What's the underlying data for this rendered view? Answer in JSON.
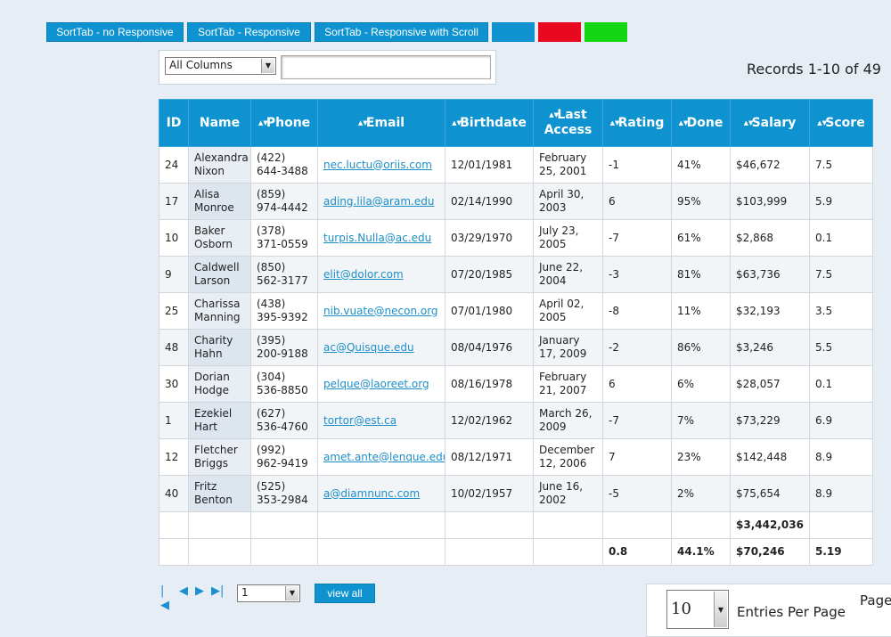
{
  "toolbar": {
    "buttons": [
      {
        "label": "SortTab - no Responsive"
      },
      {
        "label": "SortTab - Responsive"
      },
      {
        "label": "SortTab - Responsive with Scroll"
      }
    ],
    "swatches": [
      "#0e93d0",
      "#e8091e",
      "#14d614"
    ]
  },
  "filter": {
    "column_selected": "All Columns",
    "search_value": ""
  },
  "records_text": "Records 1-10 of 49",
  "table": {
    "columns": [
      "ID",
      "Name",
      "Phone",
      "Email",
      "Birthdate",
      "Last Access",
      "Rating",
      "Done",
      "Salary",
      "Score"
    ],
    "rows": [
      [
        "24",
        "Alexandra Nixon",
        "(422) 644-3488",
        "nec.luctu@oriis.com",
        "12/01/1981",
        "February 25, 2001",
        "-1",
        "41%",
        "$46,672",
        "7.5"
      ],
      [
        "17",
        "Alisa Monroe",
        "(859) 974-4442",
        "ading.lila@aram.edu",
        "02/14/1990",
        "April 30, 2003",
        "6",
        "95%",
        "$103,999",
        "5.9"
      ],
      [
        "10",
        "Baker Osborn",
        "(378) 371-0559",
        "turpis.Nulla@ac.edu",
        "03/29/1970",
        "July 23, 2005",
        "-7",
        "61%",
        "$2,868",
        "0.1"
      ],
      [
        "9",
        "Caldwell Larson",
        "(850) 562-3177",
        "elit@dolor.com",
        "07/20/1985",
        "June 22, 2004",
        "-3",
        "81%",
        "$63,736",
        "7.5"
      ],
      [
        "25",
        "Charissa Manning",
        "(438) 395-9392",
        "nib.vuate@necon.org",
        "07/01/1980",
        "April 02, 2005",
        "-8",
        "11%",
        "$32,193",
        "3.5"
      ],
      [
        "48",
        "Charity Hahn",
        "(395) 200-9188",
        "ac@Quisque.edu",
        "08/04/1976",
        "January 17, 2009",
        "-2",
        "86%",
        "$3,246",
        "5.5"
      ],
      [
        "30",
        "Dorian Hodge",
        "(304) 536-8850",
        "pelque@laoreet.org",
        "08/16/1978",
        "February 21, 2007",
        "6",
        "6%",
        "$28,057",
        "0.1"
      ],
      [
        "1",
        "Ezekiel Hart",
        "(627) 536-4760",
        "tortor@est.ca",
        "12/02/1962",
        "March 26, 2009",
        "-7",
        "7%",
        "$73,229",
        "6.9"
      ],
      [
        "12",
        "Fletcher Briggs",
        "(992) 962-9419",
        "amet.ante@lenque.edu",
        "08/12/1971",
        "December 12, 2006",
        "7",
        "23%",
        "$142,448",
        "8.9"
      ],
      [
        "40",
        "Fritz Benton",
        "(525) 353-2984",
        "a@diamnunc.com",
        "10/02/1957",
        "June 16, 2002",
        "-5",
        "2%",
        "$75,654",
        "8.9"
      ]
    ],
    "footer": [
      [
        "",
        "",
        "",
        "",
        "",
        "",
        "",
        "",
        "$3,442,036",
        ""
      ],
      [
        "",
        "",
        "",
        "",
        "",
        "",
        "0.8",
        "44.1%",
        "$70,246",
        "5.19"
      ]
    ]
  },
  "pagination": {
    "icons": [
      "first-page-icon",
      "prev-page-icon",
      "next-page-icon",
      "last-page-icon"
    ],
    "page_selected": "1",
    "view_all_label": "view all"
  },
  "entries": {
    "value": "10",
    "label": "Entries Per Page",
    "page_label": "Page"
  }
}
